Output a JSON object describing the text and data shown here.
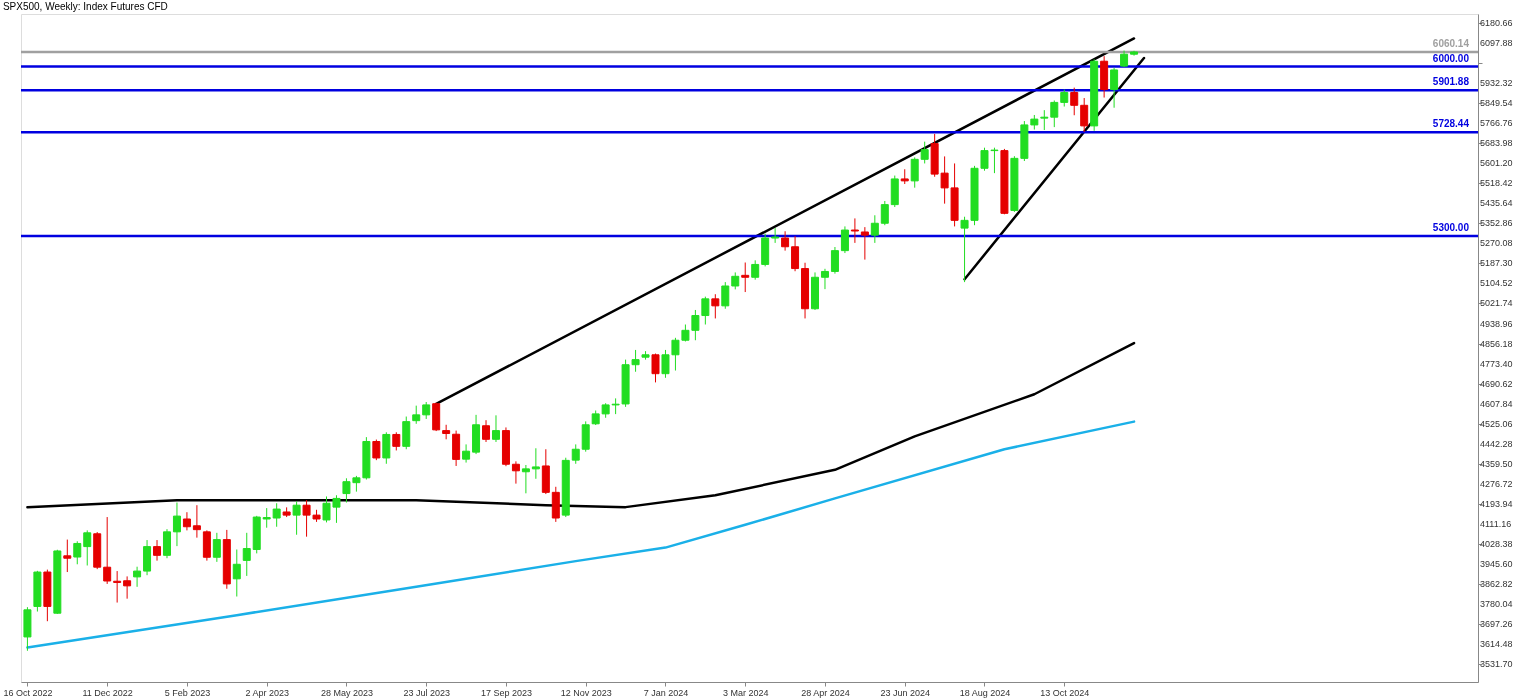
{
  "chart_data": {
    "type": "candlestick",
    "title": "SPX500, Weekly: Index Futures CFD",
    "x": [
      "2022-10-16",
      "2022-10-23",
      "2022-10-30",
      "2022-11-06",
      "2022-11-13",
      "2022-11-20",
      "2022-11-27",
      "2022-12-04",
      "2022-12-11",
      "2022-12-18",
      "2022-12-25",
      "2023-01-01",
      "2023-01-08",
      "2023-01-15",
      "2023-01-22",
      "2023-01-29",
      "2023-02-05",
      "2023-02-12",
      "2023-02-19",
      "2023-02-26",
      "2023-03-05",
      "2023-03-12",
      "2023-03-19",
      "2023-03-26",
      "2023-04-02",
      "2023-04-09",
      "2023-04-16",
      "2023-04-23",
      "2023-04-30",
      "2023-05-07",
      "2023-05-14",
      "2023-05-21",
      "2023-05-28",
      "2023-06-04",
      "2023-06-11",
      "2023-06-18",
      "2023-06-25",
      "2023-07-02",
      "2023-07-09",
      "2023-07-16",
      "2023-07-23",
      "2023-07-30",
      "2023-08-06",
      "2023-08-13",
      "2023-08-20",
      "2023-08-27",
      "2023-09-03",
      "2023-09-10",
      "2023-09-17",
      "2023-09-24",
      "2023-10-01",
      "2023-10-08",
      "2023-10-15",
      "2023-10-22",
      "2023-10-29",
      "2023-11-05",
      "2023-11-12",
      "2023-11-19",
      "2023-11-26",
      "2023-12-03",
      "2023-12-10",
      "2023-12-17",
      "2023-12-24",
      "2023-12-31",
      "2024-01-07",
      "2024-01-14",
      "2024-01-21",
      "2024-01-28",
      "2024-02-04",
      "2024-02-11",
      "2024-02-18",
      "2024-02-25",
      "2024-03-03",
      "2024-03-10",
      "2024-03-17",
      "2024-03-24",
      "2024-03-31",
      "2024-04-07",
      "2024-04-14",
      "2024-04-21",
      "2024-04-28",
      "2024-05-05",
      "2024-05-12",
      "2024-05-19",
      "2024-05-26",
      "2024-06-02",
      "2024-06-09",
      "2024-06-16",
      "2024-06-23",
      "2024-06-30",
      "2024-07-07",
      "2024-07-14",
      "2024-07-21",
      "2024-07-28",
      "2024-08-04",
      "2024-08-11",
      "2024-08-18",
      "2024-08-25",
      "2024-09-01",
      "2024-09-08",
      "2024-09-15",
      "2024-09-22",
      "2024-09-29",
      "2024-10-06",
      "2024-10-13",
      "2024-10-20",
      "2024-10-27",
      "2024-11-03",
      "2024-11-10",
      "2024-11-17",
      "2024-11-24",
      "2024-12-01"
    ],
    "ohlc": [
      [
        3645,
        3768,
        3588,
        3757
      ],
      [
        3771,
        3918,
        3750,
        3913
      ],
      [
        3913,
        3923,
        3710,
        3771
      ],
      [
        3743,
        4005,
        3740,
        4000
      ],
      [
        3980,
        4047,
        3913,
        3970
      ],
      [
        3975,
        4040,
        3945,
        4031
      ],
      [
        4018,
        4085,
        3940,
        4075
      ],
      [
        4071,
        4078,
        3925,
        3933
      ],
      [
        3933,
        4140,
        3864,
        3876
      ],
      [
        3875,
        3917,
        3787,
        3870
      ],
      [
        3877,
        3895,
        3803,
        3856
      ],
      [
        3893,
        3935,
        3852,
        3917
      ],
      [
        3917,
        4045,
        3900,
        4018
      ],
      [
        4018,
        4045,
        3960,
        3982
      ],
      [
        3982,
        4090,
        3970,
        4079
      ],
      [
        4079,
        4200,
        4020,
        4144
      ],
      [
        4132,
        4160,
        4085,
        4100
      ],
      [
        4104,
        4189,
        4055,
        4088
      ],
      [
        4079,
        4085,
        3960,
        3974
      ],
      [
        3974,
        4075,
        3955,
        4047
      ],
      [
        4047,
        4087,
        3844,
        3864
      ],
      [
        3885,
        4006,
        3812,
        3945
      ],
      [
        3961,
        4075,
        3897,
        4010
      ],
      [
        4006,
        4145,
        3990,
        4140
      ],
      [
        4132,
        4177,
        4096,
        4138
      ],
      [
        4136,
        4197,
        4100,
        4173
      ],
      [
        4161,
        4180,
        4140,
        4148
      ],
      [
        4148,
        4205,
        4067,
        4189
      ],
      [
        4189,
        4210,
        4059,
        4148
      ],
      [
        4148,
        4170,
        4120,
        4132
      ],
      [
        4128,
        4225,
        4118,
        4197
      ],
      [
        4181,
        4230,
        4116,
        4217
      ],
      [
        4237,
        4300,
        4200,
        4286
      ],
      [
        4282,
        4310,
        4245,
        4302
      ],
      [
        4302,
        4470,
        4295,
        4452
      ],
      [
        4452,
        4460,
        4375,
        4384
      ],
      [
        4384,
        4490,
        4360,
        4481
      ],
      [
        4481,
        4490,
        4415,
        4432
      ],
      [
        4432,
        4555,
        4420,
        4534
      ],
      [
        4538,
        4600,
        4525,
        4562
      ],
      [
        4562,
        4615,
        4545,
        4603
      ],
      [
        4608,
        4612,
        4495,
        4500
      ],
      [
        4497,
        4521,
        4461,
        4485
      ],
      [
        4482,
        4497,
        4351,
        4378
      ],
      [
        4379,
        4440,
        4365,
        4412
      ],
      [
        4408,
        4562,
        4400,
        4521
      ],
      [
        4517,
        4540,
        4450,
        4461
      ],
      [
        4461,
        4560,
        4450,
        4497
      ],
      [
        4497,
        4510,
        4350,
        4358
      ],
      [
        4358,
        4370,
        4278,
        4331
      ],
      [
        4327,
        4355,
        4238,
        4339
      ],
      [
        4339,
        4424,
        4298,
        4347
      ],
      [
        4351,
        4420,
        4235,
        4242
      ],
      [
        4242,
        4265,
        4120,
        4136
      ],
      [
        4148,
        4385,
        4140,
        4374
      ],
      [
        4375,
        4440,
        4360,
        4420
      ],
      [
        4420,
        4535,
        4410,
        4521
      ],
      [
        4525,
        4580,
        4520,
        4566
      ],
      [
        4566,
        4610,
        4550,
        4603
      ],
      [
        4603,
        4630,
        4565,
        4606
      ],
      [
        4607,
        4790,
        4595,
        4769
      ],
      [
        4769,
        4830,
        4740,
        4790
      ],
      [
        4800,
        4825,
        4790,
        4810
      ],
      [
        4810,
        4815,
        4696,
        4732
      ],
      [
        4732,
        4830,
        4715,
        4810
      ],
      [
        4810,
        4880,
        4745,
        4870
      ],
      [
        4870,
        4935,
        4865,
        4911
      ],
      [
        4911,
        4995,
        4870,
        4972
      ],
      [
        4972,
        5050,
        4935,
        5041
      ],
      [
        5041,
        5060,
        4960,
        5012
      ],
      [
        5012,
        5110,
        5000,
        5094
      ],
      [
        5094,
        5150,
        5080,
        5134
      ],
      [
        5138,
        5191,
        5069,
        5130
      ],
      [
        5130,
        5200,
        5120,
        5183
      ],
      [
        5183,
        5310,
        5175,
        5292
      ],
      [
        5292,
        5333,
        5272,
        5296
      ],
      [
        5292,
        5320,
        5240,
        5256
      ],
      [
        5256,
        5300,
        5155,
        5166
      ],
      [
        5166,
        5190,
        4960,
        5000
      ],
      [
        5000,
        5150,
        4995,
        5130
      ],
      [
        5130,
        5165,
        5081,
        5154
      ],
      [
        5154,
        5255,
        5145,
        5240
      ],
      [
        5240,
        5340,
        5230,
        5325
      ],
      [
        5325,
        5373,
        5272,
        5321
      ],
      [
        5317,
        5337,
        5203,
        5304
      ],
      [
        5304,
        5386,
        5272,
        5353
      ],
      [
        5353,
        5445,
        5345,
        5430
      ],
      [
        5430,
        5550,
        5420,
        5536
      ],
      [
        5536,
        5576,
        5515,
        5528
      ],
      [
        5528,
        5625,
        5500,
        5617
      ],
      [
        5617,
        5690,
        5600,
        5657
      ],
      [
        5682,
        5722,
        5545,
        5556
      ],
      [
        5560,
        5629,
        5434,
        5499
      ],
      [
        5499,
        5600,
        5340,
        5365
      ],
      [
        5333,
        5380,
        5110,
        5365
      ],
      [
        5365,
        5590,
        5345,
        5580
      ],
      [
        5580,
        5665,
        5570,
        5653
      ],
      [
        5653,
        5665,
        5560,
        5655
      ],
      [
        5653,
        5660,
        5390,
        5394
      ],
      [
        5406,
        5630,
        5400,
        5621
      ],
      [
        5621,
        5775,
        5610,
        5759
      ],
      [
        5759,
        5800,
        5740,
        5783
      ],
      [
        5787,
        5820,
        5738,
        5791
      ],
      [
        5791,
        5860,
        5750,
        5852
      ],
      [
        5852,
        5905,
        5835,
        5893
      ],
      [
        5893,
        5913,
        5799,
        5840
      ],
      [
        5840,
        5870,
        5730,
        5755
      ],
      [
        5755,
        6030,
        5735,
        6022
      ],
      [
        6022,
        6043,
        5872,
        5905
      ],
      [
        5905,
        5995,
        5830,
        5986
      ],
      [
        6002,
        6066,
        5998,
        6051
      ],
      [
        6051,
        6065,
        6045,
        6060.14
      ]
    ],
    "colors": [
      "#22dd22",
      "#22dd22",
      "#e50000",
      "#22dd22",
      "#e50000",
      "#22dd22",
      "#22dd22",
      "#e50000",
      "#e50000",
      "#e50000",
      "#e50000",
      "#22dd22",
      "#22dd22",
      "#e50000",
      "#22dd22",
      "#22dd22",
      "#e50000",
      "#e50000",
      "#e50000",
      "#22dd22",
      "#e50000",
      "#22dd22",
      "#22dd22",
      "#22dd22",
      "#22dd22",
      "#22dd22",
      "#e50000",
      "#22dd22",
      "#e50000",
      "#e50000",
      "#22dd22",
      "#22dd22",
      "#22dd22",
      "#22dd22",
      "#22dd22",
      "#e50000",
      "#22dd22",
      "#e50000",
      "#22dd22",
      "#22dd22",
      "#22dd22",
      "#e50000",
      "#e50000",
      "#e50000",
      "#22dd22",
      "#22dd22",
      "#e50000",
      "#22dd22",
      "#e50000",
      "#e50000",
      "#22dd22",
      "#22dd22",
      "#e50000",
      "#e50000",
      "#22dd22",
      "#22dd22",
      "#22dd22",
      "#22dd22",
      "#22dd22",
      "#22dd22",
      "#22dd22",
      "#22dd22",
      "#22dd22",
      "#e50000",
      "#22dd22",
      "#22dd22",
      "#22dd22",
      "#22dd22",
      "#22dd22",
      "#e50000",
      "#22dd22",
      "#22dd22",
      "#e50000",
      "#22dd22",
      "#22dd22",
      "#22dd22",
      "#e50000",
      "#e50000",
      "#e50000",
      "#22dd22",
      "#22dd22",
      "#22dd22",
      "#22dd22",
      "#e50000",
      "#e50000",
      "#22dd22",
      "#22dd22",
      "#22dd22",
      "#e50000",
      "#22dd22",
      "#22dd22",
      "#e50000",
      "#e50000",
      "#e50000",
      "#22dd22",
      "#22dd22",
      "#22dd22",
      "#22dd22",
      "#e50000",
      "#22dd22",
      "#22dd22",
      "#22dd22",
      "#22dd22",
      "#22dd22",
      "#22dd22",
      "#e50000",
      "#e50000",
      "#22dd22",
      "#e50000",
      "#22dd22",
      "#22dd22",
      "#22dd22"
    ],
    "series": [
      {
        "type": "line",
        "color": "#000000",
        "x": [
          "2022-10-16",
          "2023-01-29",
          "2023-05-14",
          "2023-07-16",
          "2023-10-15",
          "2023-12-10",
          "2024-02-11",
          "2024-05-05",
          "2024-06-30",
          "2024-09-22",
          "2024-12-01"
        ],
        "values": [
          4181,
          4209,
          4209,
          4209,
          4189,
          4181,
          4230,
          4335,
          4473,
          4647,
          4858
        ]
      },
      {
        "type": "line",
        "color": "#1ab0e8",
        "x": [
          "2022-10-16",
          "2023-03-12",
          "2023-07-16",
          "2023-11-05",
          "2024-01-07",
          "2024-03-03",
          "2024-05-05",
          "2024-09-01",
          "2024-12-01"
        ],
        "values": [
          3601,
          3735,
          3852,
          3958,
          4014,
          4108,
          4217,
          4420,
          4534
        ]
      },
      {
        "type": "line",
        "color": "#000000",
        "x": [
          "2023-07-30",
          "2024-12-01"
        ],
        "values": [
          4607,
          6116
        ]
      },
      {
        "type": "line",
        "color": "#000000",
        "x": [
          "2024-08-04",
          "2024-12-08"
        ],
        "values": [
          5122,
          6035
        ]
      }
    ],
    "ref_lines": [
      {
        "axis": "y",
        "value": 6060.14,
        "label": "6060.14",
        "color": "#a0a0a0"
      },
      {
        "axis": "y",
        "value": 6000,
        "label": "6000.00",
        "color": "#0000e0"
      },
      {
        "axis": "y",
        "value": 5901.88,
        "label": "5901.88",
        "color": "#0000e0"
      },
      {
        "axis": "y",
        "value": 5728.44,
        "label": "5728.44",
        "color": "#0000e0"
      },
      {
        "axis": "y",
        "value": 5300,
        "label": "5300.00",
        "color": "#0000e0"
      }
    ],
    "xlim": [
      "2022-10-15",
      "2025-07-27"
    ],
    "ylim": [
      3459,
      6217
    ],
    "xticks": [
      {
        "value": "2022-10-16",
        "label": "16 Oct 2022"
      },
      {
        "value": "2022-12-11",
        "label": "11 Dec 2022"
      },
      {
        "value": "2023-02-05",
        "label": "5 Feb 2023"
      },
      {
        "value": "2023-04-02",
        "label": "2 Apr 2023"
      },
      {
        "value": "2023-05-28",
        "label": "28 May 2023"
      },
      {
        "value": "2023-07-23",
        "label": "23 Jul 2023"
      },
      {
        "value": "2023-09-17",
        "label": "17 Sep 2023"
      },
      {
        "value": "2023-11-12",
        "label": "12 Nov 2023"
      },
      {
        "value": "2024-01-07",
        "label": "7 Jan 2024"
      },
      {
        "value": "2024-03-03",
        "label": "3 Mar 2024"
      },
      {
        "value": "2024-04-28",
        "label": "28 Apr 2024"
      },
      {
        "value": "2024-06-23",
        "label": "23 Jun 2024"
      },
      {
        "value": "2024-08-18",
        "label": "18 Aug 2024"
      },
      {
        "value": "2024-10-13",
        "label": "13 Oct 2024"
      }
    ],
    "yticks": [
      {
        "value": 3531.7,
        "label": "3531.70"
      },
      3614.48,
      3697.26,
      3780.04,
      3862.82,
      {
        "value": 3945.6,
        "label": "3945.60"
      },
      4028.38,
      4111.16,
      4193.94,
      4276.72,
      {
        "value": 4359.5,
        "label": "4359.50"
      },
      4442.28,
      4525.06,
      4607.84,
      4690.62,
      {
        "value": 4773.4,
        "label": "4773.40"
      },
      4856.18,
      4938.96,
      5021.74,
      5104.52,
      {
        "value": 5187.3,
        "label": "5187.30"
      },
      5270.08,
      5352.86,
      5435.64,
      5518.42,
      {
        "value": 5601.2,
        "label": "5601.20"
      },
      5683.98,
      5766.76,
      5849.54,
      5932.32,
      {
        "value": 6015.1,
        "label": null
      },
      6097.88,
      6180.66
    ]
  }
}
